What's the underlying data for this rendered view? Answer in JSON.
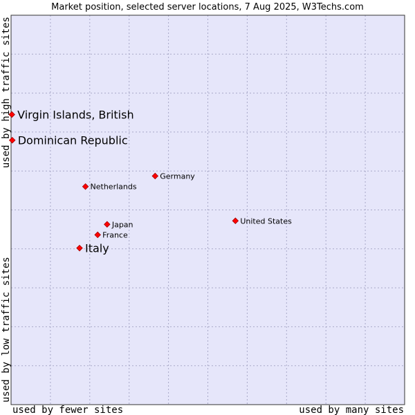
{
  "chart_data": {
    "type": "scatter",
    "title": "Market position, selected server locations, 7 Aug 2025, W3Techs.com",
    "xlabel_left": "used by fewer sites",
    "xlabel_right": "used by many sites",
    "ylabel_bottom": "used by low traffic sites",
    "ylabel_top": "used by high traffic sites",
    "xlim": [
      0,
      100
    ],
    "ylim": [
      0,
      100
    ],
    "grid": true,
    "colors": {
      "plot_bg": "#e6e6fa",
      "grid": "#a8a8c8",
      "marker": "#ff0000",
      "marker_edge": "#a00000"
    },
    "points": [
      {
        "name": "Virgin Islands, British",
        "x": 0.2,
        "y": 74.5,
        "emphasis": true
      },
      {
        "name": "Dominican Republic",
        "x": 0.3,
        "y": 67.9,
        "emphasis": true
      },
      {
        "name": "Germany",
        "x": 36.6,
        "y": 58.7,
        "emphasis": false
      },
      {
        "name": "Netherlands",
        "x": 18.9,
        "y": 56.0,
        "emphasis": false
      },
      {
        "name": "United States",
        "x": 57.0,
        "y": 47.2,
        "emphasis": false
      },
      {
        "name": "Japan",
        "x": 24.4,
        "y": 46.3,
        "emphasis": false
      },
      {
        "name": "France",
        "x": 22.0,
        "y": 43.6,
        "emphasis": false
      },
      {
        "name": "Italy",
        "x": 17.4,
        "y": 40.2,
        "emphasis": true
      }
    ]
  }
}
